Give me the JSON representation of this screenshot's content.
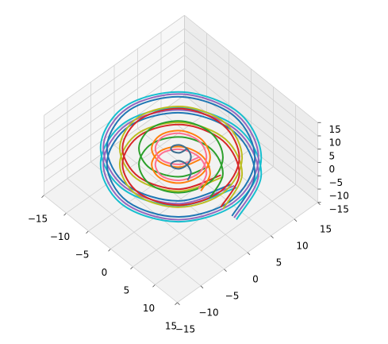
{
  "chart_data": {
    "type": "line3d",
    "xlim": [
      -15,
      15
    ],
    "ylim": [
      -15,
      15
    ],
    "zlim": [
      -15,
      15
    ],
    "xticks": [
      {
        "value": -15,
        "label": "−15"
      },
      {
        "value": -10,
        "label": "−10"
      },
      {
        "value": -5,
        "label": "−5"
      },
      0,
      5,
      10,
      15
    ],
    "yticks": [
      {
        "value": -15,
        "label": "−15"
      },
      {
        "value": -10,
        "label": "−10"
      },
      {
        "value": -5,
        "label": "−5"
      },
      0,
      5,
      10,
      15
    ],
    "zticks": [
      {
        "value": -15,
        "label": "−15"
      },
      {
        "value": -10,
        "label": "−10"
      },
      {
        "value": -5,
        "label": "−5"
      },
      0,
      5,
      10,
      15
    ],
    "grid": true,
    "series": [
      {
        "color": "#17becf",
        "x": [
          12.5,
          8.8,
          0,
          -8.8,
          -12.5,
          -8.8,
          0,
          8.8,
          12.5,
          8.8,
          0,
          -8.8,
          -12.5,
          -8.8,
          0,
          8.8,
          12.5
        ],
        "y": [
          0,
          8.8,
          12.5,
          8.8,
          0,
          -8.8,
          -12.5,
          -8.8,
          0,
          8.8,
          12.5,
          8.8,
          0,
          -8.8,
          -12.5,
          -8.8,
          0
        ],
        "z": [
          -6,
          -5.25,
          -4.5,
          -3.75,
          -3,
          -2.25,
          -1.5,
          -0.75,
          0,
          0.75,
          1.5,
          2.25,
          3,
          3.75,
          4.5,
          5.25,
          6
        ]
      },
      {
        "color": "#9467bd",
        "x": [
          12,
          8.5,
          0,
          -8.5,
          -12,
          -8.5,
          0,
          8.5,
          12,
          8.5,
          0,
          -8.5,
          -12,
          -8.5,
          0,
          8.5,
          12
        ],
        "y": [
          0,
          8.5,
          12,
          8.5,
          0,
          -8.5,
          -12,
          -8.5,
          0,
          8.5,
          12,
          8.5,
          0,
          -8.5,
          -12,
          -8.5,
          0
        ],
        "z": [
          -6,
          -5.25,
          -4.5,
          -3.75,
          -3,
          -2.25,
          -1.5,
          -0.75,
          0,
          0.75,
          1.5,
          2.25,
          3,
          3.75,
          4.5,
          5.25,
          6
        ]
      },
      {
        "color": "#1f77b4",
        "x": [
          11.5,
          8.1,
          0,
          -8.1,
          -11.5,
          -8.1,
          0,
          8.1,
          11.5,
          8.1,
          0,
          -8.1,
          -11.5,
          -8.1,
          0,
          8.1,
          11.5
        ],
        "y": [
          0,
          8.1,
          11.5,
          8.1,
          0,
          -8.1,
          -11.5,
          -8.1,
          0,
          8.1,
          11.5,
          8.1,
          0,
          -8.1,
          -11.5,
          -8.1,
          0
        ],
        "z": [
          -6,
          -5.25,
          -4.5,
          -3.75,
          -3,
          -2.25,
          -1.5,
          -0.75,
          0,
          0.75,
          1.5,
          2.25,
          3,
          3.75,
          4.5,
          5.25,
          6
        ]
      },
      {
        "color": "#bcbd22",
        "x": [
          9.5,
          6.7,
          0,
          -6.7,
          -9.5,
          -6.7,
          0,
          6.7,
          9.5,
          6.7,
          0,
          -6.7,
          -9.5,
          -6.7,
          0,
          6.7,
          9.5
        ],
        "y": [
          0,
          6.7,
          9.5,
          6.7,
          0,
          -6.7,
          -9.5,
          -6.7,
          0,
          6.7,
          9.5,
          6.7,
          0,
          -6.7,
          -9.5,
          -6.7,
          0
        ],
        "z": [
          -6,
          -5.25,
          -4.5,
          -3.75,
          -3,
          -2.25,
          -1.5,
          -0.75,
          0,
          0.75,
          1.5,
          2.25,
          3,
          3.75,
          4.5,
          5.25,
          6
        ]
      },
      {
        "color": "#d62728",
        "x": [
          9,
          6.4,
          0,
          -6.4,
          -9,
          -6.4,
          0,
          6.4,
          9,
          6.4,
          0,
          -6.4,
          -9,
          -6.4,
          0,
          6.4,
          9
        ],
        "y": [
          0,
          6.4,
          9,
          6.4,
          0,
          -6.4,
          -9,
          -6.4,
          0,
          6.4,
          9,
          6.4,
          0,
          -6.4,
          -9,
          -6.4,
          0
        ],
        "z": [
          -6,
          -5.25,
          -4.5,
          -3.75,
          -3,
          -2.25,
          -1.5,
          -0.75,
          0,
          0.75,
          1.5,
          2.25,
          3,
          3.75,
          4.5,
          5.25,
          6
        ]
      },
      {
        "color": "#2ca02c",
        "x": [
          6.5,
          4.6,
          0,
          -4.6,
          -6.5,
          -4.6,
          0,
          4.6,
          6.5,
          4.6,
          0,
          -4.6,
          -6.5,
          -4.6,
          0,
          4.6,
          6.5
        ],
        "y": [
          0,
          4.6,
          6.5,
          4.6,
          0,
          -4.6,
          -6.5,
          -4.6,
          0,
          4.6,
          6.5,
          4.6,
          0,
          -4.6,
          -6.5,
          -4.6,
          0
        ],
        "z": [
          -6,
          -5.25,
          -4.5,
          -3.75,
          -3,
          -2.25,
          -1.5,
          -0.75,
          0,
          0.75,
          1.5,
          2.25,
          3,
          3.75,
          4.5,
          5.25,
          6
        ]
      },
      {
        "color": "#ff7f0e",
        "x": [
          4.5,
          3.2,
          0,
          -3.2,
          -4.5,
          -3.2,
          0,
          3.2,
          4.5,
          3.2,
          0,
          -3.2,
          -4.5,
          -3.2,
          0,
          3.2,
          4.5
        ],
        "y": [
          0,
          3.2,
          4.5,
          3.2,
          0,
          -3.2,
          -4.5,
          -3.2,
          0,
          3.2,
          4.5,
          3.2,
          0,
          -3.2,
          -4.5,
          -3.2,
          0
        ],
        "z": [
          -6,
          -5.25,
          -4.5,
          -3.75,
          -3,
          -2.25,
          -1.5,
          -0.75,
          0,
          0.75,
          1.5,
          2.25,
          3,
          3.75,
          4.5,
          5.25,
          6
        ]
      },
      {
        "color": "#ff6f91",
        "x": [
          4,
          2.8,
          0,
          -2.8,
          -4,
          -2.8,
          0,
          2.8,
          4,
          2.8,
          0,
          -2.8,
          -4,
          -2.8,
          0,
          2.8,
          4
        ],
        "y": [
          0,
          2.8,
          4,
          2.8,
          0,
          -2.8,
          -4,
          -2.8,
          0,
          2.8,
          4,
          2.8,
          0,
          -2.8,
          -4,
          -2.8,
          0
        ],
        "z": [
          -6,
          -5.25,
          -4.5,
          -3.75,
          -3,
          -2.25,
          -1.5,
          -0.75,
          0,
          0.75,
          1.5,
          2.25,
          3,
          3.75,
          4.5,
          5.25,
          6
        ]
      },
      {
        "color": "#3b6e8f",
        "x": [
          1.5,
          1.1,
          0,
          -1.1,
          -1.5,
          -1.1,
          0,
          1.1,
          1.5,
          1.1,
          0,
          -1.1,
          -1.5,
          -1.1,
          0,
          1.1,
          1.5
        ],
        "y": [
          0,
          1.1,
          1.5,
          1.1,
          0,
          -1.1,
          -1.5,
          -1.1,
          0,
          1.1,
          1.5,
          1.1,
          0,
          -1.1,
          -1.5,
          -1.1,
          0
        ],
        "z": [
          -6,
          -5.25,
          -4.5,
          -3.75,
          -3,
          -2.25,
          -1.5,
          -0.75,
          0,
          0.75,
          1.5,
          2.25,
          3,
          3.75,
          4.5,
          5.25,
          6
        ]
      }
    ]
  }
}
